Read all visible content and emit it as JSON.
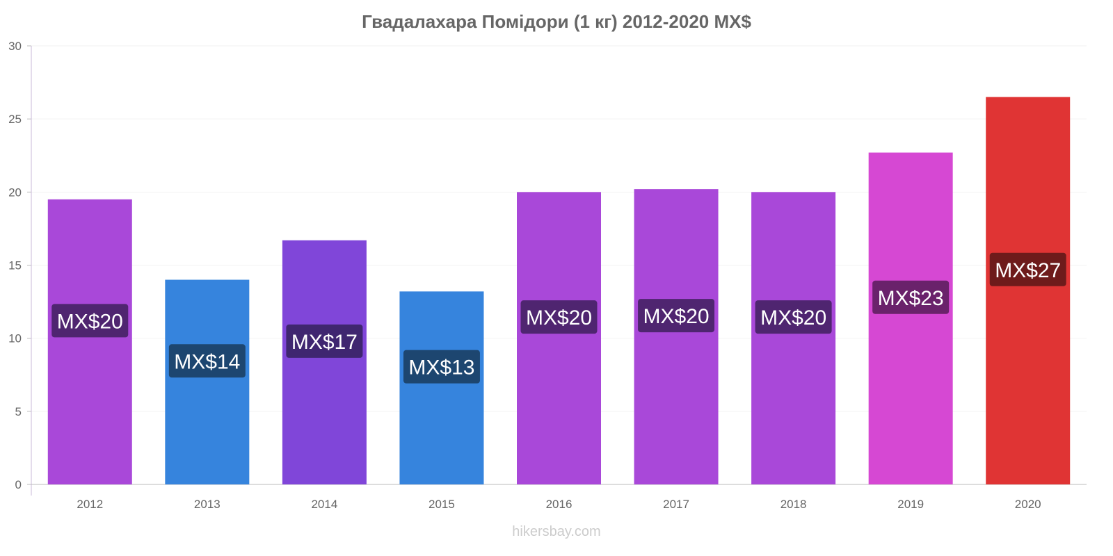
{
  "chart_data": {
    "type": "bar",
    "title": "Гвадалахара Помідори (1 кг) 2012-2020 MX$",
    "categories": [
      "2012",
      "2013",
      "2014",
      "2015",
      "2016",
      "2017",
      "2018",
      "2019",
      "2020"
    ],
    "values": [
      19.5,
      14.0,
      16.7,
      13.2,
      20.0,
      20.2,
      20.0,
      22.7,
      26.5
    ],
    "data_labels": [
      "MX$20",
      "MX$14",
      "MX$17",
      "MX$13",
      "MX$20",
      "MX$20",
      "MX$20",
      "MX$23",
      "MX$27"
    ],
    "bar_colors": [
      "#a948d9",
      "#3684dd",
      "#8046d9",
      "#3684dd",
      "#a948d9",
      "#a948d9",
      "#a948d9",
      "#d648d3",
      "#e03434"
    ],
    "label_colors": [
      "#4f2570",
      "#1d4670",
      "#3f2670",
      "#1d4670",
      "#4f2570",
      "#4f2570",
      "#4f2570",
      "#6a226b",
      "#6e1b1b"
    ],
    "yticks": [
      0,
      5,
      10,
      15,
      20,
      25,
      30
    ],
    "ylim": [
      0,
      30
    ],
    "xlabel": "",
    "ylabel": "",
    "grid": true
  },
  "footer": "hikersbay.com"
}
